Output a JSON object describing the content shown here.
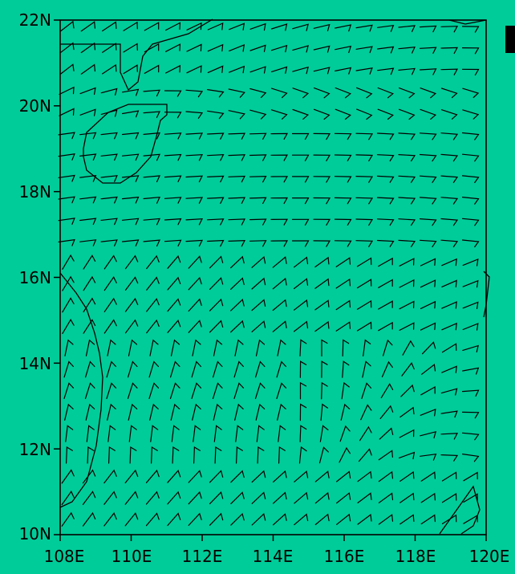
{
  "background": "#00cc99",
  "map": {
    "lat_range": [
      10,
      22
    ],
    "lon_range": [
      108,
      120
    ],
    "lat_tick_values": [
      10,
      12,
      14,
      16,
      18,
      20,
      22
    ],
    "lon_tick_values": [
      108,
      110,
      112,
      114,
      116,
      118,
      120
    ],
    "lat_labels": [
      "10N",
      "12N",
      "14N",
      "16N",
      "18N",
      "20N",
      "22N"
    ],
    "lon_labels": [
      "108E",
      "110E",
      "112E",
      "114E",
      "116E",
      "118E",
      "120E"
    ]
  }
}
